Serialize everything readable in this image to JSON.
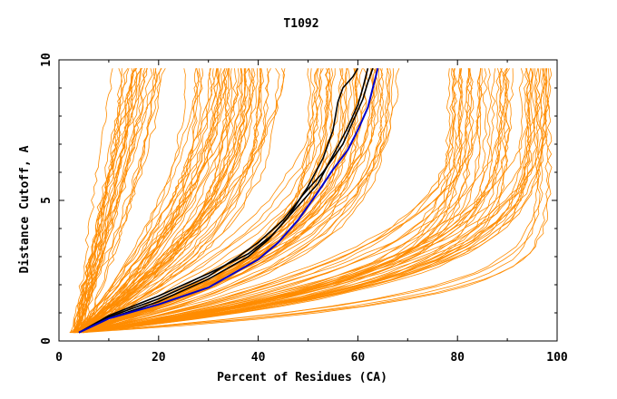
{
  "chart_data": {
    "type": "line",
    "title": "T1092",
    "xlabel": "Percent of Residues (CA)",
    "ylabel": "Distance Cutoff, A",
    "xlim": [
      0,
      100
    ],
    "ylim": [
      0,
      10
    ],
    "x_ticks": [
      {
        "value": 0,
        "label": "0"
      },
      {
        "value": 20,
        "label": "20"
      },
      {
        "value": 40,
        "label": "40"
      },
      {
        "value": 60,
        "label": "60"
      },
      {
        "value": 80,
        "label": "80"
      },
      {
        "value": 100,
        "label": "100"
      }
    ],
    "y_ticks": [
      {
        "value": 0,
        "label": "0"
      },
      {
        "value": 5,
        "label": "5"
      },
      {
        "value": 10,
        "label": "10"
      }
    ],
    "grid": false,
    "legend": "none",
    "colors": {
      "background_series": "#ff8c00",
      "highlight_series": "#000000",
      "best_series": "#0000cc"
    },
    "background_series_count": 160,
    "highlight_series": [
      {
        "points": [
          [
            4,
            0.3
          ],
          [
            10,
            0.8
          ],
          [
            20,
            1.4
          ],
          [
            30,
            2.2
          ],
          [
            38,
            3.0
          ],
          [
            42,
            3.6
          ],
          [
            46,
            4.4
          ],
          [
            50,
            5.5
          ],
          [
            53,
            6.5
          ],
          [
            55,
            7.5
          ],
          [
            56,
            8.5
          ],
          [
            57,
            9.0
          ],
          [
            59,
            9.4
          ],
          [
            60,
            9.7
          ]
        ]
      },
      {
        "points": [
          [
            4,
            0.3
          ],
          [
            10,
            0.9
          ],
          [
            20,
            1.6
          ],
          [
            30,
            2.4
          ],
          [
            38,
            3.1
          ],
          [
            43,
            3.8
          ],
          [
            47,
            4.6
          ],
          [
            52,
            5.6
          ],
          [
            55,
            6.6
          ],
          [
            58,
            7.6
          ],
          [
            60,
            8.4
          ],
          [
            61,
            9.0
          ],
          [
            62,
            9.7
          ]
        ]
      },
      {
        "points": [
          [
            4,
            0.3
          ],
          [
            10,
            0.85
          ],
          [
            20,
            1.5
          ],
          [
            30,
            2.3
          ],
          [
            36,
            3.0
          ],
          [
            40,
            3.5
          ],
          [
            45,
            4.3
          ],
          [
            49,
            5.2
          ],
          [
            53,
            6.0
          ],
          [
            57,
            7.0
          ],
          [
            59,
            7.8
          ],
          [
            61,
            8.6
          ],
          [
            62,
            9.2
          ],
          [
            63,
            9.7
          ]
        ]
      }
    ],
    "best_series": {
      "points": [
        [
          4,
          0.3
        ],
        [
          10,
          0.8
        ],
        [
          20,
          1.3
        ],
        [
          30,
          1.9
        ],
        [
          36,
          2.5
        ],
        [
          40,
          2.9
        ],
        [
          44,
          3.5
        ],
        [
          48,
          4.3
        ],
        [
          52,
          5.3
        ],
        [
          55,
          6.1
        ],
        [
          58,
          6.8
        ],
        [
          60,
          7.5
        ],
        [
          62,
          8.3
        ],
        [
          63,
          9.0
        ],
        [
          64,
          9.7
        ]
      ]
    }
  }
}
